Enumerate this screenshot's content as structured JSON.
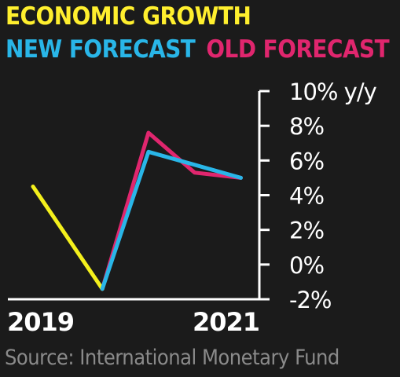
{
  "title": "ECONOMIC GROWTH",
  "legend": [
    {
      "label": "NEW FORECAST",
      "color": "#29b6e8"
    },
    {
      "label": "OLD FORECAST",
      "color": "#e0266e"
    }
  ],
  "source": "Source: International Monetary Fund",
  "colors": {
    "background": "#1b1b1b",
    "title": "#ffef2e",
    "history": "#f4f01c",
    "axis": "#ffffff",
    "source": "#8a8a8a"
  },
  "chart_data": {
    "type": "line",
    "title": "ECONOMIC GROWTH",
    "x_labels": [
      "2019",
      "2021"
    ],
    "y_ticks": [
      "10% y/y",
      "8%",
      "6%",
      "4%",
      "2%",
      "0%",
      "-2%"
    ],
    "y_tick_values": [
      10,
      8,
      6,
      4,
      2,
      0,
      -2
    ],
    "ylim": [
      -2,
      10
    ],
    "y_axis_side": "right",
    "grid": false,
    "legend": "top-left",
    "series": [
      {
        "name": "",
        "color": "#f4f01c",
        "points": [
          {
            "x": 2019.0,
            "y": 4.5
          },
          {
            "x": 2019.75,
            "y": -1.4
          }
        ]
      },
      {
        "name": "OLD FORECAST",
        "color": "#e0266e",
        "points": [
          {
            "x": 2019.75,
            "y": -1.4
          },
          {
            "x": 2020.25,
            "y": 7.6
          },
          {
            "x": 2020.75,
            "y": 5.3
          },
          {
            "x": 2021.25,
            "y": 5.0
          }
        ]
      },
      {
        "name": "NEW FORECAST",
        "color": "#29b6e8",
        "points": [
          {
            "x": 2019.75,
            "y": -1.4
          },
          {
            "x": 2020.25,
            "y": 6.5
          },
          {
            "x": 2021.25,
            "y": 5.0
          }
        ]
      }
    ]
  }
}
